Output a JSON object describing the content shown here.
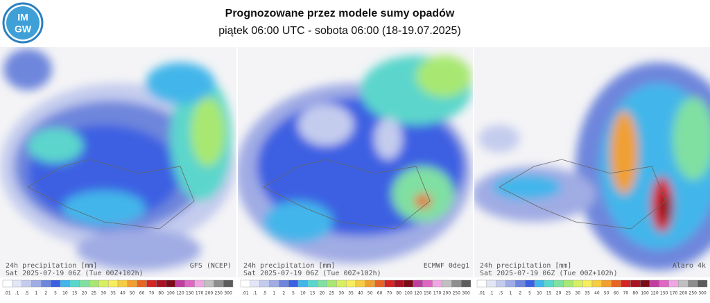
{
  "header": {
    "title": "Prognozowane przez modele sumy opadów",
    "subtitle": "piątek 06:00 UTC - sobota 06:00 (18-19.07.2025)",
    "logo_top": "IM",
    "logo_bottom": "GW"
  },
  "panels": [
    {
      "caption": "24h precipitation   [mm]",
      "model": "GFS (NCEP)",
      "valid": "Sat 2025-07-19 06Z (Tue 00Z+102h)"
    },
    {
      "caption": "24h precipitation   [mm]",
      "model": "ECMWF 0deg1",
      "valid": "Sat 2025-07-19 06Z (Tue 00Z+102h)"
    },
    {
      "caption": "24h precipitation   [mm]",
      "model": "Alaro 4k",
      "valid": "Sat 2025-07-19 06Z (Tue 00Z+102h)"
    }
  ],
  "legend": [
    {
      "label": ".01",
      "color": "#ffffff"
    },
    {
      "label": ".1",
      "color": "#e2e6f6"
    },
    {
      "label": ".5",
      "color": "#c4ccee"
    },
    {
      "label": "1",
      "color": "#a0ace4"
    },
    {
      "label": "2",
      "color": "#6e86dc"
    },
    {
      "label": "5",
      "color": "#3c60e2"
    },
    {
      "label": "10",
      "color": "#42b6ea"
    },
    {
      "label": "15",
      "color": "#5cd6cc"
    },
    {
      "label": "20",
      "color": "#80e0a2"
    },
    {
      "label": "25",
      "color": "#a8e872"
    },
    {
      "label": "30",
      "color": "#d6f062"
    },
    {
      "label": "35",
      "color": "#f6ee5e"
    },
    {
      "label": "40",
      "color": "#f6cc42"
    },
    {
      "label": "50",
      "color": "#f0a032"
    },
    {
      "label": "60",
      "color": "#e86424"
    },
    {
      "label": "70",
      "color": "#d42424"
    },
    {
      "label": "80",
      "color": "#a81222"
    },
    {
      "label": "100",
      "color": "#7a0c18"
    },
    {
      "label": "120",
      "color": "#c03ea0"
    },
    {
      "label": "150",
      "color": "#e066c4"
    },
    {
      "label": "170",
      "color": "#f0a6e2"
    },
    {
      "label": "200",
      "color": "#c0c0c0"
    },
    {
      "label": "250",
      "color": "#8e8e8e"
    },
    {
      "label": "300",
      "color": "#5c5c5c"
    }
  ]
}
